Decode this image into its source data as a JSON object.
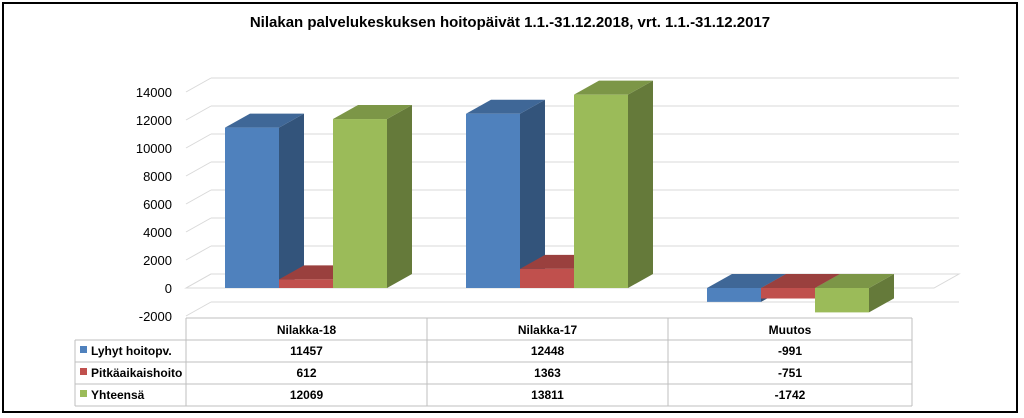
{
  "chart_data": {
    "type": "bar",
    "title": "Nilakan palvelukeskuksen hoitopäivät  1.1.-31.12.2018, vrt. 1.1.-31.12.2017",
    "categories": [
      "Nilakka-18",
      "Nilakka-17",
      "Muutos"
    ],
    "series": [
      {
        "name": "Lyhyt hoitopv.",
        "values": [
          11457,
          12448,
          -991
        ],
        "color": "#4f81bd"
      },
      {
        "name": "Pitkäaikaishoito",
        "values": [
          612,
          1363,
          -751
        ],
        "color": "#c0504d"
      },
      {
        "name": "Yhteensä",
        "values": [
          12069,
          13811,
          -1742
        ],
        "color": "#9bbb59"
      }
    ],
    "table_values": [
      [
        "11457",
        "12448",
        "-991"
      ],
      [
        "612",
        "1363",
        "-751"
      ],
      [
        "12069",
        "13811",
        "-1742"
      ]
    ],
    "yticks": [
      "-2000",
      "0",
      "2000",
      "4000",
      "6000",
      "8000",
      "10000",
      "12000",
      "14000"
    ],
    "ylim": [
      -2000,
      14000
    ],
    "grid": true,
    "xlabel": "",
    "ylabel": ""
  }
}
